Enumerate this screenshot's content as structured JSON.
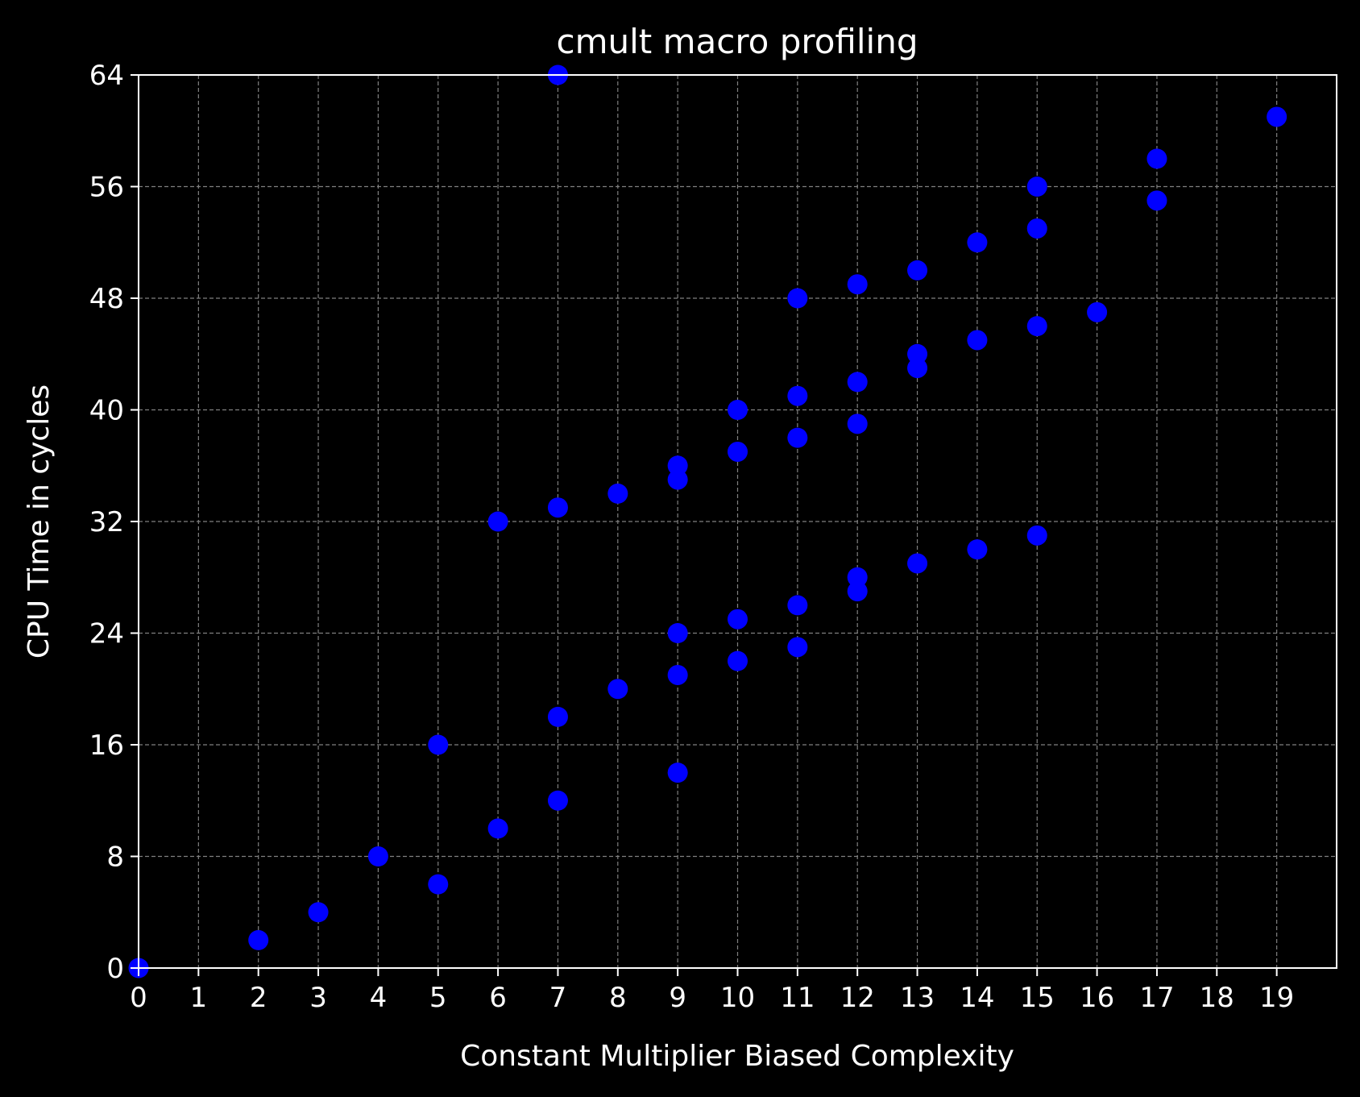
{
  "chart_data": {
    "type": "scatter",
    "title": "cmult macro profiling",
    "xlabel": "Constant Multiplier Biased Complexity",
    "ylabel": "CPU Time in cycles",
    "xlim": [
      0,
      20
    ],
    "ylim": [
      0,
      64
    ],
    "xticks": [
      "0",
      "1",
      "2",
      "3",
      "4",
      "5",
      "6",
      "7",
      "8",
      "9",
      "10",
      "11",
      "12",
      "13",
      "14",
      "15",
      "16",
      "17",
      "18",
      "19"
    ],
    "yticks": [
      "0",
      "8",
      "16",
      "24",
      "32",
      "40",
      "48",
      "56",
      "64"
    ],
    "grid": true,
    "marker_color": "#0000ff",
    "background_color": "#000000",
    "foreground_color": "#ffffff",
    "grid_color": "#808080",
    "series": [
      {
        "x": [
          0,
          2,
          3,
          4,
          5,
          5,
          6,
          6,
          7,
          7,
          7,
          7,
          8,
          8,
          9,
          9,
          9,
          9,
          9,
          10,
          10,
          10,
          10,
          11,
          11,
          11,
          11,
          11,
          12,
          12,
          12,
          12,
          12,
          13,
          13,
          13,
          13,
          14,
          14,
          14,
          15,
          15,
          15,
          15,
          16,
          17,
          17,
          19
        ],
        "y": [
          0,
          2,
          4,
          8,
          6,
          16,
          10,
          32,
          12,
          18,
          33,
          64,
          20,
          34,
          14,
          21,
          24,
          35,
          36,
          22,
          25,
          37,
          40,
          23,
          26,
          38,
          41,
          48,
          27,
          28,
          39,
          42,
          49,
          29,
          43,
          44,
          50,
          30,
          45,
          52,
          31,
          46,
          53,
          56,
          47,
          55,
          58,
          61
        ]
      }
    ]
  }
}
